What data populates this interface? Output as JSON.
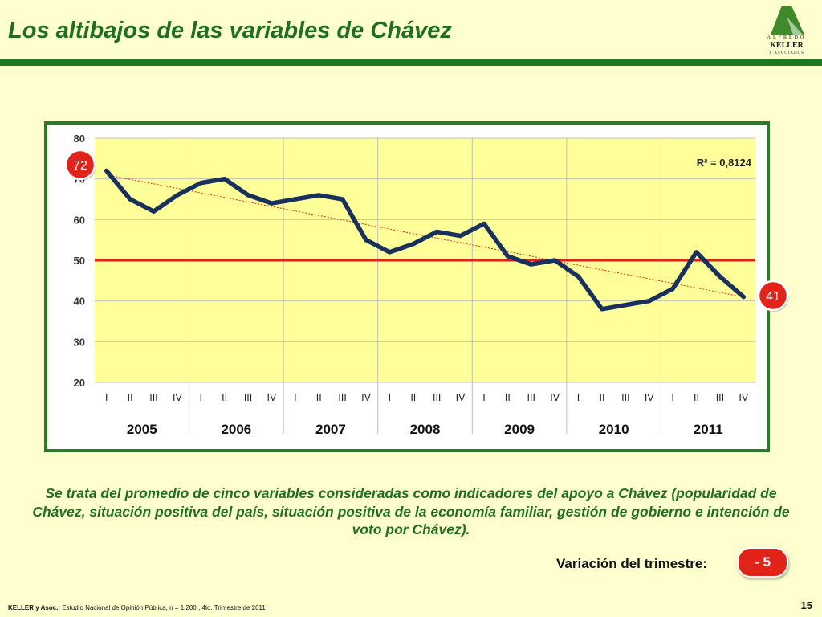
{
  "slide": {
    "title": "Los altibajos de las variables de Chávez",
    "page_number": "15"
  },
  "logo": {
    "line1": "ALFREDO",
    "line2": "KELLER",
    "line3": "Y ASOCIADOS"
  },
  "description": "Se trata del promedio de cinco variables consideradas como indicadores del apoyo a Chávez (popularidad de Chávez, situación positiva del país, situación positiva de la economía familiar, gestión de gobierno e intención de voto por Chávez).",
  "variation": {
    "label": "Variación del trimestre:",
    "value": "- 5"
  },
  "footer": {
    "source_bold": "KELLER y Asoc.:",
    "source_text": " Estudio Nacional de Opinión Pública, n = 1.200 , 4to. Trimestre de 2011"
  },
  "colors": {
    "title_green": "#1f6f1f",
    "frame_green": "#2a7a2a",
    "plot_bg": "#ffff99",
    "series_line": "#17305e",
    "reference_line": "#e3201b",
    "badge_red": "#e2231a"
  },
  "chart_data": {
    "type": "line",
    "x_quarters": [
      "I",
      "II",
      "III",
      "IV",
      "I",
      "II",
      "III",
      "IV",
      "I",
      "II",
      "III",
      "IV",
      "I",
      "II",
      "III",
      "IV",
      "I",
      "II",
      "III",
      "IV",
      "I",
      "II",
      "III",
      "IV",
      "I",
      "II",
      "III",
      "IV"
    ],
    "years": [
      "2005",
      "2006",
      "2007",
      "2008",
      "2009",
      "2010",
      "2011"
    ],
    "series": [
      {
        "values": [
          72,
          65,
          62,
          66,
          69,
          70,
          66,
          64,
          65,
          66,
          65,
          55,
          52,
          54,
          57,
          56,
          59,
          51,
          49,
          50,
          46,
          38,
          39,
          40,
          43,
          52,
          46,
          41
        ]
      }
    ],
    "reference_line": 50,
    "trendline": {
      "start": 71,
      "end": 41,
      "r2_label": "R² = 0,8124"
    },
    "callouts": {
      "first": "72",
      "last": "41"
    },
    "ylim": [
      20,
      80
    ],
    "yticks": [
      20,
      30,
      40,
      50,
      60,
      70,
      80
    ],
    "grid": true,
    "legend": "none"
  }
}
